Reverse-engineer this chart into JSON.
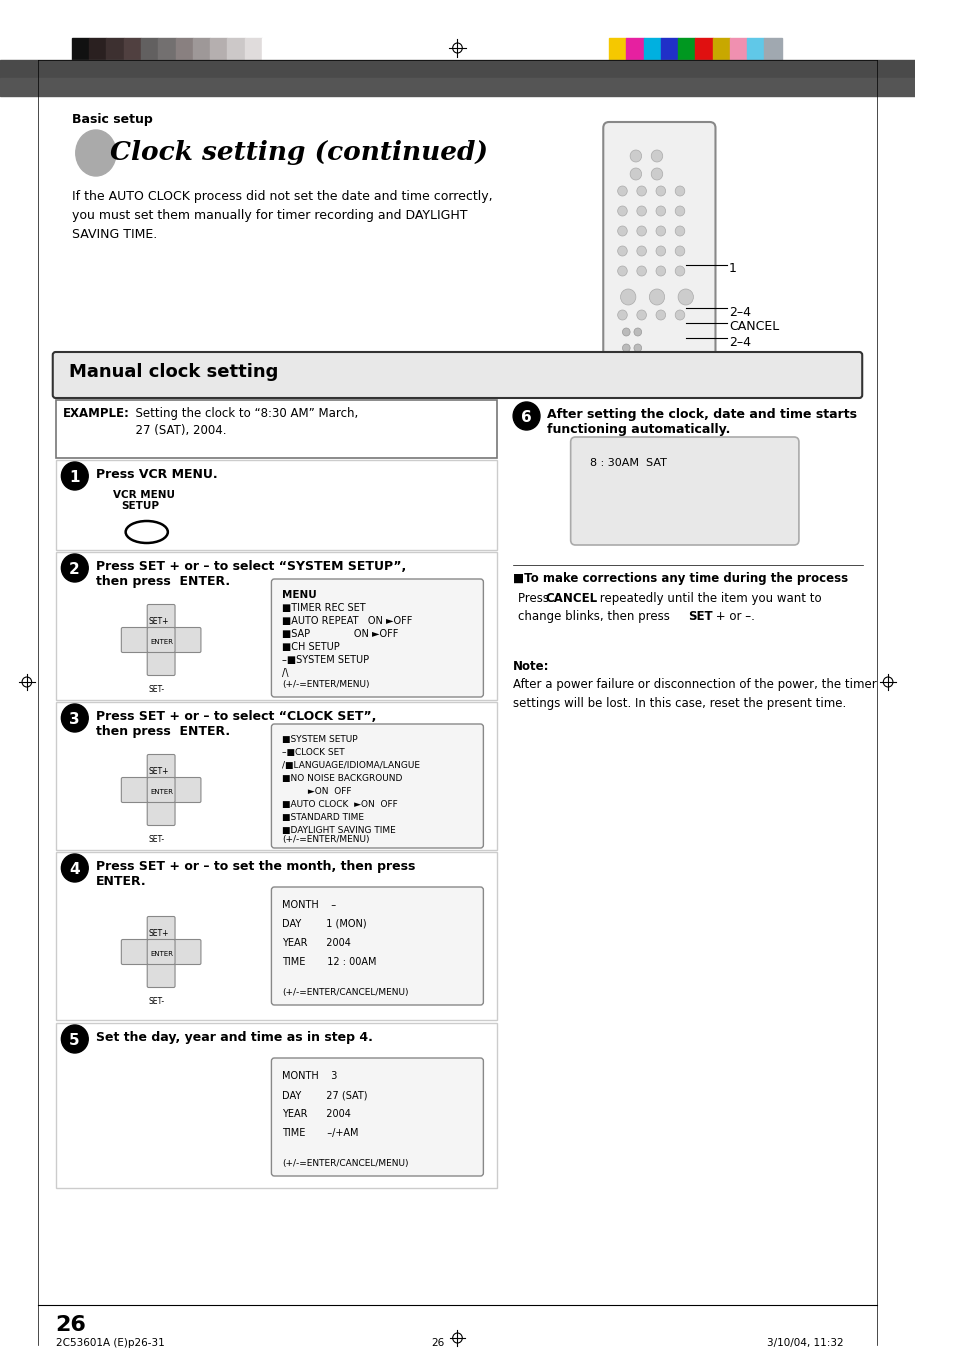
{
  "page_bg": "#ffffff",
  "header_bar_color": "#555555",
  "header_text": "Basic setup",
  "title_text": "Clock setting (continued)",
  "intro_text": "If the AUTO CLOCK process did not set the date and time correctly,\nyou must set them manually for timer recording and DAYLIGHT\nSAVING TIME.",
  "section_title": "Manual clock setting",
  "section_bg": "#e8e8e8",
  "section_border": "#333333",
  "example_text": "EXAMPLE:   Setting the clock to “8:30 AM” March,\n                     27 (SAT), 2004.",
  "step1_title": "Press VCR MENU.",
  "step1_sub": "VCR MENU\n  SETUP",
  "step2_title": "Press SET + or – to select “SYSTEM SETUP”,\nthen press  ENTER.",
  "step3_title": "Press SET + or – to select “CLOCK SET”,\nthen press  ENTER.",
  "step4_title": "Press SET + or – to set the month, then press\nENTER.",
  "step5_title": "Set the day, year and time as in step 4.",
  "step6_title": "After setting the clock, date and time starts\nfunctioning automatically.",
  "menu2_lines": [
    "MENU",
    "■TIMER REC SET",
    "■AUTO REPEAT   ON ►OFF",
    "■SAP              ON ►OFF",
    "■CH SETUP",
    "–■SYSTEM SETUP",
    "/\\"
  ],
  "menu2_footer": "(+/-=ENTER/MENU)",
  "menu3_lines": [
    "■SYSTEM SETUP",
    "–■CLOCK SET",
    "/■LANGUAGE/IDIOMA/LANGUE",
    "■NO NOISE BACKGROUND",
    "         ►ON  OFF",
    "■AUTO CLOCK  ►ON  OFF",
    "■STANDARD TIME",
    "■DAYLIGHT SAVING TIME"
  ],
  "menu3_footer": "(+/-=ENTER/MENU)",
  "menu4_lines": [
    "MONTH    –",
    "DAY        1 (MON)",
    "YEAR      2004",
    "TIME       12 : 00AM"
  ],
  "menu4_footer": "(+/-=ENTER/CANCEL/MENU)",
  "menu5_lines": [
    "MONTH    3",
    "DAY        27 (SAT)",
    "YEAR      2004",
    "TIME       –/+AM"
  ],
  "menu5_footer": "(+/-=ENTER/CANCEL/MENU)",
  "display6_text": "8 : 30AM  SAT",
  "correction_bold": "■To make corrections any time during the process",
  "correction_text": "Press CANCEL repeatedly until the item you want to\nchange blinks, then press SET + or –.",
  "note_title": "Note:",
  "note_text": "After a power failure or disconnection of the power, the timer\nsettings will be lost. In this case, reset the present time.",
  "footer_left": "2C53601A (E)p26-31",
  "footer_center": "26",
  "footer_right": "3/10/04, 11:32",
  "page_number": "26",
  "label1": "1",
  "label24a": "2–4",
  "label_cancel": "CANCEL",
  "label24b": "2–4"
}
